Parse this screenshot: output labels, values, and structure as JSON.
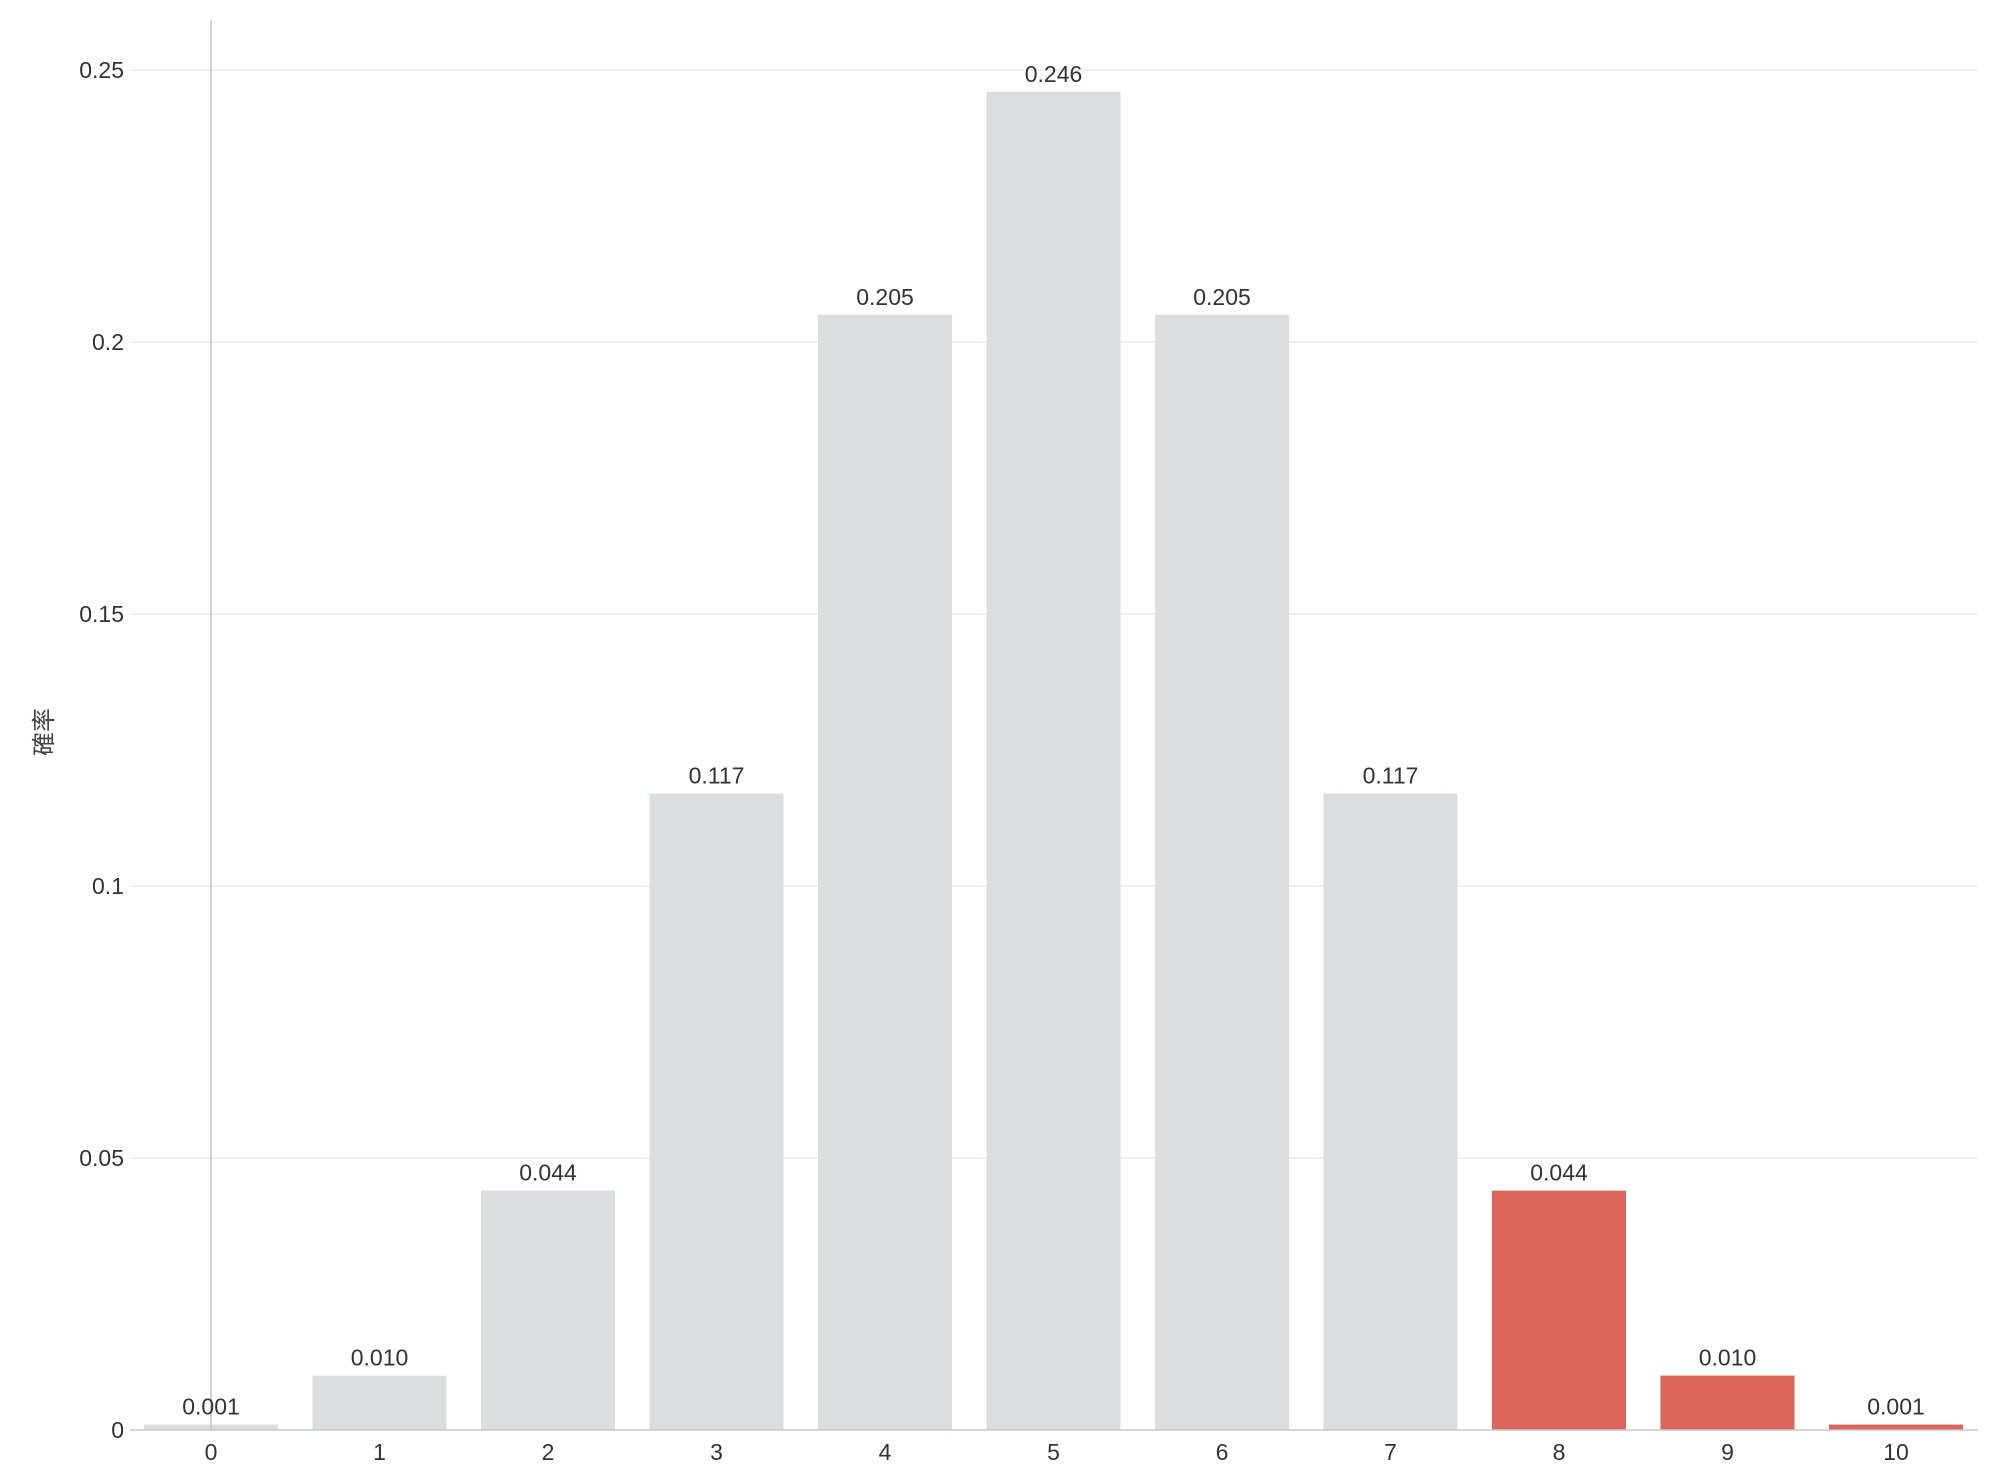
{
  "chart_data": {
    "type": "bar",
    "categories": [
      "0",
      "1",
      "2",
      "3",
      "4",
      "5",
      "6",
      "7",
      "8",
      "9",
      "10"
    ],
    "values": [
      0.001,
      0.01,
      0.044,
      0.117,
      0.205,
      0.246,
      0.205,
      0.117,
      0.044,
      0.01,
      0.001
    ],
    "value_labels": [
      "0.001",
      "0.010",
      "0.044",
      "0.117",
      "0.205",
      "0.246",
      "0.205",
      "0.117",
      "0.044",
      "0.010",
      "0.001"
    ],
    "highlighted": [
      false,
      false,
      false,
      false,
      false,
      false,
      false,
      false,
      true,
      true,
      true
    ],
    "ylabel": "確率",
    "xlabel": "",
    "ylim": [
      0,
      0.25
    ],
    "yticks": [
      0,
      0.05,
      0.1,
      0.15,
      0.2,
      0.25
    ],
    "ytick_labels": [
      "0",
      "0.05",
      "0.1",
      "0.15",
      "0.2",
      "0.25"
    ],
    "grid": "horizontal",
    "colors": {
      "default": "#dcdddf",
      "highlight": "#dd665c"
    }
  }
}
